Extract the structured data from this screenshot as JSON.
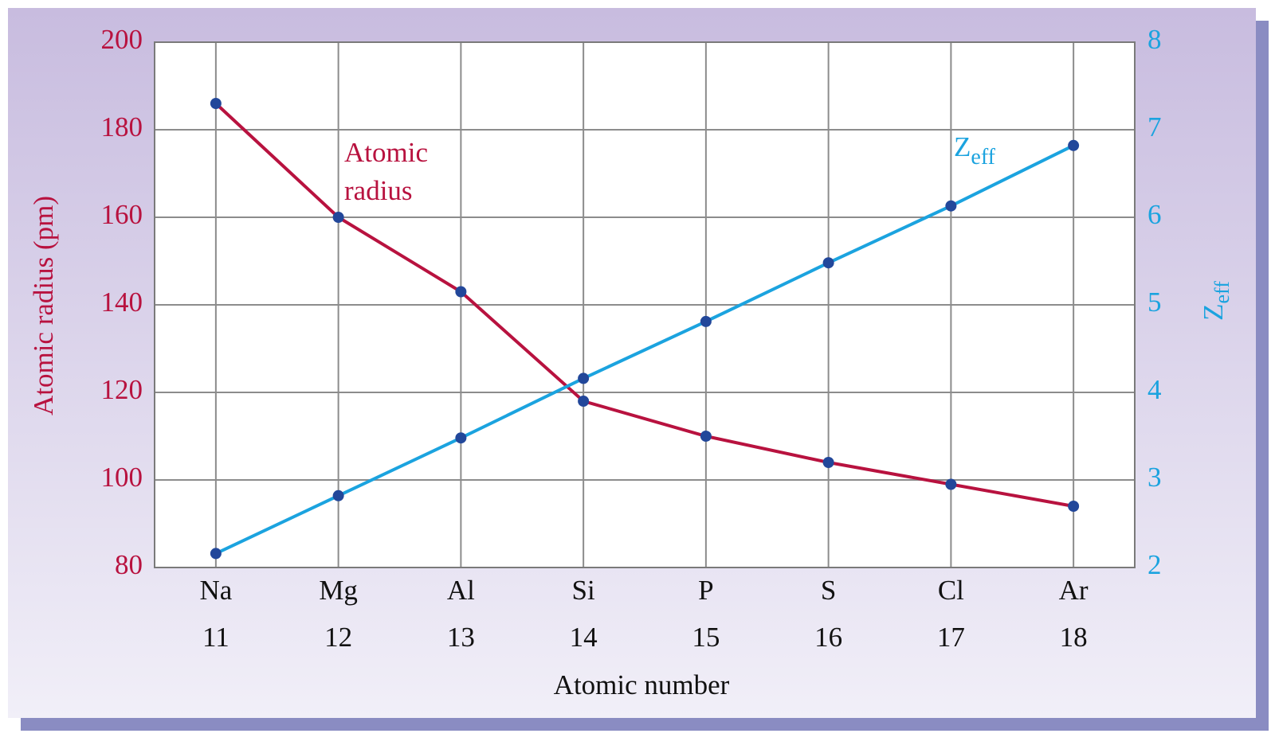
{
  "chart_data": {
    "type": "line",
    "categories": [
      "Na",
      "Mg",
      "Al",
      "Si",
      "P",
      "S",
      "Cl",
      "Ar"
    ],
    "atomic_numbers": [
      11,
      12,
      13,
      14,
      15,
      16,
      17,
      18
    ],
    "xlabel": "Atomic number",
    "ylabel": "Atomic radius (pm)",
    "y2label": "Z",
    "y2label_sub": "eff",
    "ylim": [
      80,
      200
    ],
    "yticks": [
      80,
      100,
      120,
      140,
      160,
      180,
      200
    ],
    "y2lim": [
      2,
      8
    ],
    "y2ticks": [
      2,
      3,
      4,
      5,
      6,
      7,
      8
    ],
    "grid": true,
    "marker_color": "#22479a",
    "series": [
      {
        "name": "Atomic radius",
        "color": "#b8123f",
        "values": [
          186,
          160,
          143,
          118,
          110,
          104,
          99,
          94
        ]
      },
      {
        "name": "Z",
        "name_sub": "eff",
        "color": "#1ba3df",
        "axis": "y2",
        "values": [
          2.16,
          2.82,
          3.48,
          4.16,
          4.81,
          5.48,
          6.13,
          6.82
        ]
      }
    ]
  }
}
